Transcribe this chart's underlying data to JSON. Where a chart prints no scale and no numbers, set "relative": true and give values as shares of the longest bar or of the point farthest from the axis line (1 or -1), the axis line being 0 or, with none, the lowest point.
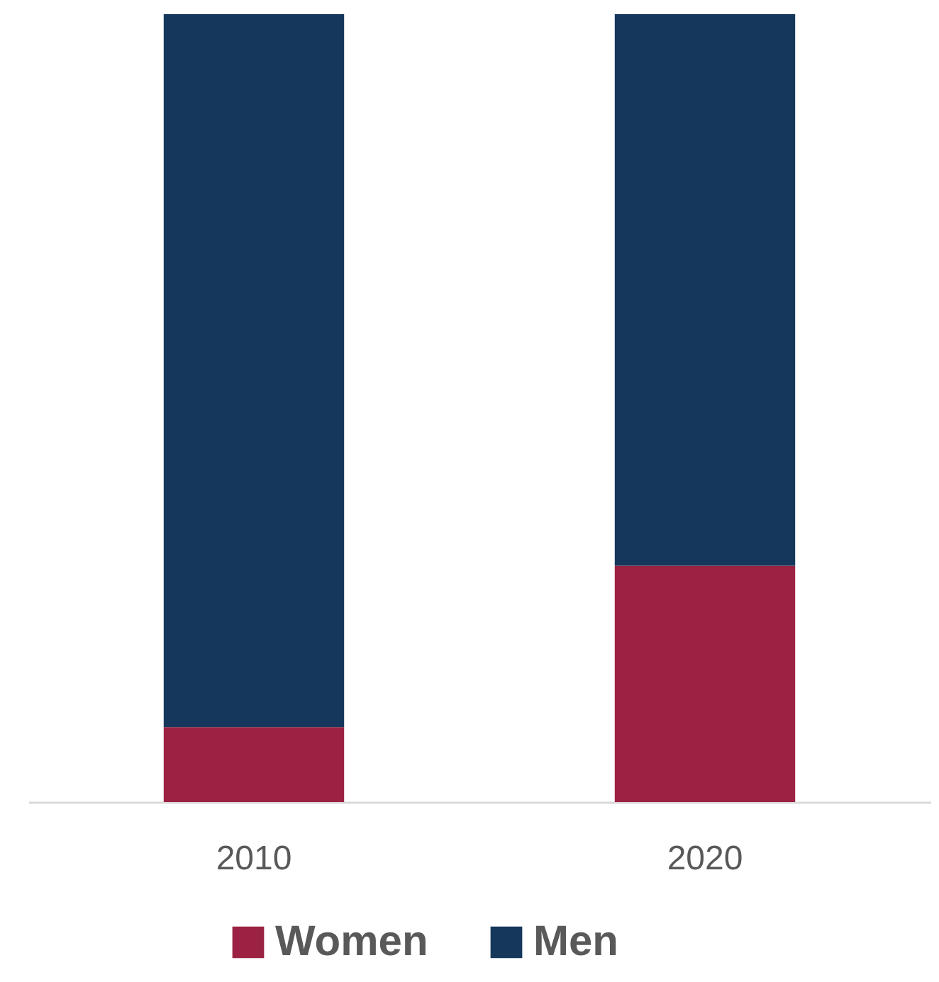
{
  "chart_data": {
    "type": "bar",
    "stacked": true,
    "relative": true,
    "categories": [
      "2010",
      "2020"
    ],
    "series": [
      {
        "name": "Women",
        "color": "#9b2242",
        "values": [
          0.095,
          0.3
        ]
      },
      {
        "name": "Men",
        "color": "#16375c",
        "values": [
          0.905,
          0.7
        ]
      }
    ],
    "legend": "bottom"
  }
}
